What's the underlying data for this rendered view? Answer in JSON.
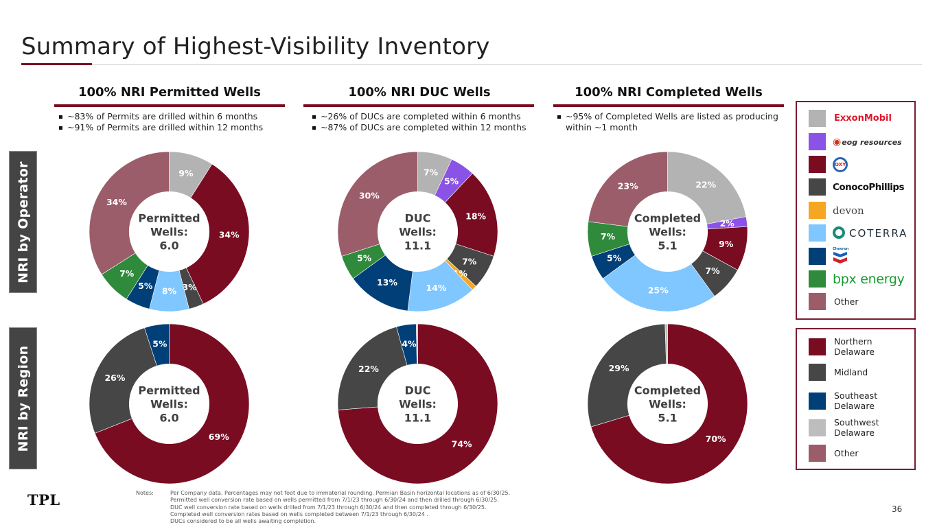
{
  "title": "Summary of Highest-Visibility Inventory",
  "colors": {
    "accent": "#7a0c22",
    "exxonmobil": "#b3b3b3",
    "eog": "#8b52e6",
    "oxy": "#7a0c22",
    "conocophillips": "#464646",
    "devon": "#f5a623",
    "coterra": "#80c6ff",
    "chevron": "#003f78",
    "bpx": "#2f8a3c",
    "other": "#9b5d69",
    "northern_delaware": "#7a0c22",
    "midland": "#464646",
    "southeast_delaware": "#003f78",
    "southwest_delaware": "#bdbdbd",
    "region_other": "#9b5d69"
  },
  "side_labels": {
    "operator": "NRI by Operator",
    "region": "NRI by Region"
  },
  "columns": [
    {
      "header": "100% NRI Permitted Wells",
      "bullets": [
        "~83% of Permits are drilled within 6 months",
        "~91% of Permits are drilled within 12 months"
      ]
    },
    {
      "header": "100% NRI DUC Wells",
      "bullets": [
        "~26% of DUCs are completed within 6 months",
        "~87% of DUCs are completed within 12 months"
      ]
    },
    {
      "header": "100% NRI Completed Wells",
      "bullets": [
        "~95% of Completed Wells are listed as producing within ~1 month"
      ]
    }
  ],
  "operator_legend": [
    {
      "key": "exxonmobil",
      "label": "ExxonMobil"
    },
    {
      "key": "eog",
      "label": "eog resources"
    },
    {
      "key": "oxy",
      "label": "OXY"
    },
    {
      "key": "conocophillips",
      "label": "ConocoPhillips"
    },
    {
      "key": "devon",
      "label": "devon"
    },
    {
      "key": "coterra",
      "label": "COTERRA"
    },
    {
      "key": "chevron",
      "label": "Chevron"
    },
    {
      "key": "bpx",
      "label": "bpx energy"
    },
    {
      "key": "other",
      "label": "Other"
    }
  ],
  "region_legend": [
    {
      "key": "northern_delaware",
      "label": "Northern Delaware"
    },
    {
      "key": "midland",
      "label": "Midland"
    },
    {
      "key": "southeast_delaware",
      "label": "Southeast Delaware"
    },
    {
      "key": "southwest_delaware",
      "label": "Southwest Delaware"
    },
    {
      "key": "region_other",
      "label": "Other"
    }
  ],
  "chart_data": [
    {
      "type": "pie",
      "variant": "donut",
      "title": "NRI by Operator - Permitted Wells",
      "center_label": [
        "Permitted",
        "Wells:",
        "6.0"
      ],
      "categories": [
        "ExxonMobil",
        "eog resources",
        "OXY",
        "ConocoPhillips",
        "devon",
        "COTERRA",
        "Chevron",
        "bpx energy",
        "Other"
      ],
      "keys": [
        "exxonmobil",
        "eog",
        "oxy",
        "conocophillips",
        "devon",
        "coterra",
        "chevron",
        "bpx",
        "other"
      ],
      "values": [
        9,
        0,
        34,
        3,
        0,
        8,
        5,
        7,
        34
      ],
      "labels": [
        "9%",
        "",
        "34%",
        "3%",
        "",
        "8%",
        "5%",
        "7%",
        "34%"
      ]
    },
    {
      "type": "pie",
      "variant": "donut",
      "title": "NRI by Operator - DUC Wells",
      "center_label": [
        "DUC",
        "Wells:",
        "11.1"
      ],
      "categories": [
        "ExxonMobil",
        "eog resources",
        "OXY",
        "ConocoPhillips",
        "devon",
        "COTERRA",
        "Chevron",
        "bpx energy",
        "Other"
      ],
      "keys": [
        "exxonmobil",
        "eog",
        "oxy",
        "conocophillips",
        "devon",
        "coterra",
        "chevron",
        "bpx",
        "other"
      ],
      "values": [
        7,
        5,
        18,
        7,
        1,
        14,
        13,
        5,
        30
      ],
      "labels": [
        "7%",
        "5%",
        "18%",
        "7%",
        "1%",
        "14%",
        "13%",
        "5%",
        "30%"
      ]
    },
    {
      "type": "pie",
      "variant": "donut",
      "title": "NRI by Operator - Completed Wells",
      "center_label": [
        "Completed",
        "Wells:",
        "5.1"
      ],
      "categories": [
        "ExxonMobil",
        "eog resources",
        "OXY",
        "ConocoPhillips",
        "devon",
        "COTERRA",
        "Chevron",
        "bpx energy",
        "Other"
      ],
      "keys": [
        "exxonmobil",
        "eog",
        "oxy",
        "conocophillips",
        "devon",
        "coterra",
        "chevron",
        "bpx",
        "other"
      ],
      "values": [
        22,
        2,
        9,
        7,
        0,
        25,
        5,
        7,
        23
      ],
      "labels": [
        "22%",
        "2%",
        "9%",
        "7%",
        "",
        "25%",
        "5%",
        "7%",
        "23%"
      ]
    },
    {
      "type": "pie",
      "variant": "donut",
      "title": "NRI by Region - Permitted Wells",
      "center_label": [
        "Permitted",
        "Wells:",
        "6.0"
      ],
      "categories": [
        "Northern Delaware",
        "Midland",
        "Southeast Delaware"
      ],
      "keys": [
        "northern_delaware",
        "midland",
        "southeast_delaware"
      ],
      "values": [
        69,
        26,
        5
      ],
      "labels": [
        "69%",
        "26%",
        "5%"
      ]
    },
    {
      "type": "pie",
      "variant": "donut",
      "title": "NRI by Region - DUC Wells",
      "center_label": [
        "DUC",
        "Wells:",
        "11.1"
      ],
      "categories": [
        "Northern Delaware",
        "Midland",
        "Southeast Delaware",
        "Southwest Delaware"
      ],
      "keys": [
        "northern_delaware",
        "midland",
        "southeast_delaware",
        "southwest_delaware"
      ],
      "values": [
        74,
        22,
        4,
        0.3
      ],
      "labels": [
        "74%",
        "22%",
        "4%",
        ""
      ]
    },
    {
      "type": "pie",
      "variant": "donut",
      "title": "NRI by Region - Completed Wells",
      "center_label": [
        "Completed",
        "Wells:",
        "5.1"
      ],
      "categories": [
        "Northern Delaware",
        "Midland",
        "Southwest Delaware"
      ],
      "keys": [
        "northern_delaware",
        "midland",
        "southwest_delaware"
      ],
      "values": [
        70,
        29,
        0.5
      ],
      "labels": [
        "70%",
        "29%",
        ""
      ]
    }
  ],
  "footer": {
    "logo": "TPL",
    "notes_label": "Notes:",
    "notes": [
      "Per Company data. Percentages may not foot due to immaterial rounding. Permian Basin horizontal locations as of 6/30/25.",
      "Permitted well conversion rate based on wells permitted from 7/1/23 through 6/30/24 and then drilled through 6/30/25.",
      "DUC well conversion rate based on wells drilled from  7/1/23 through 6/30/24 and then completed through 6/30/25.",
      "Completed well conversion rates based on wells completed between  7/1/23 through 6/30/24 .",
      "DUCs considered to be all wells awaiting completion."
    ],
    "page_number": "36"
  }
}
